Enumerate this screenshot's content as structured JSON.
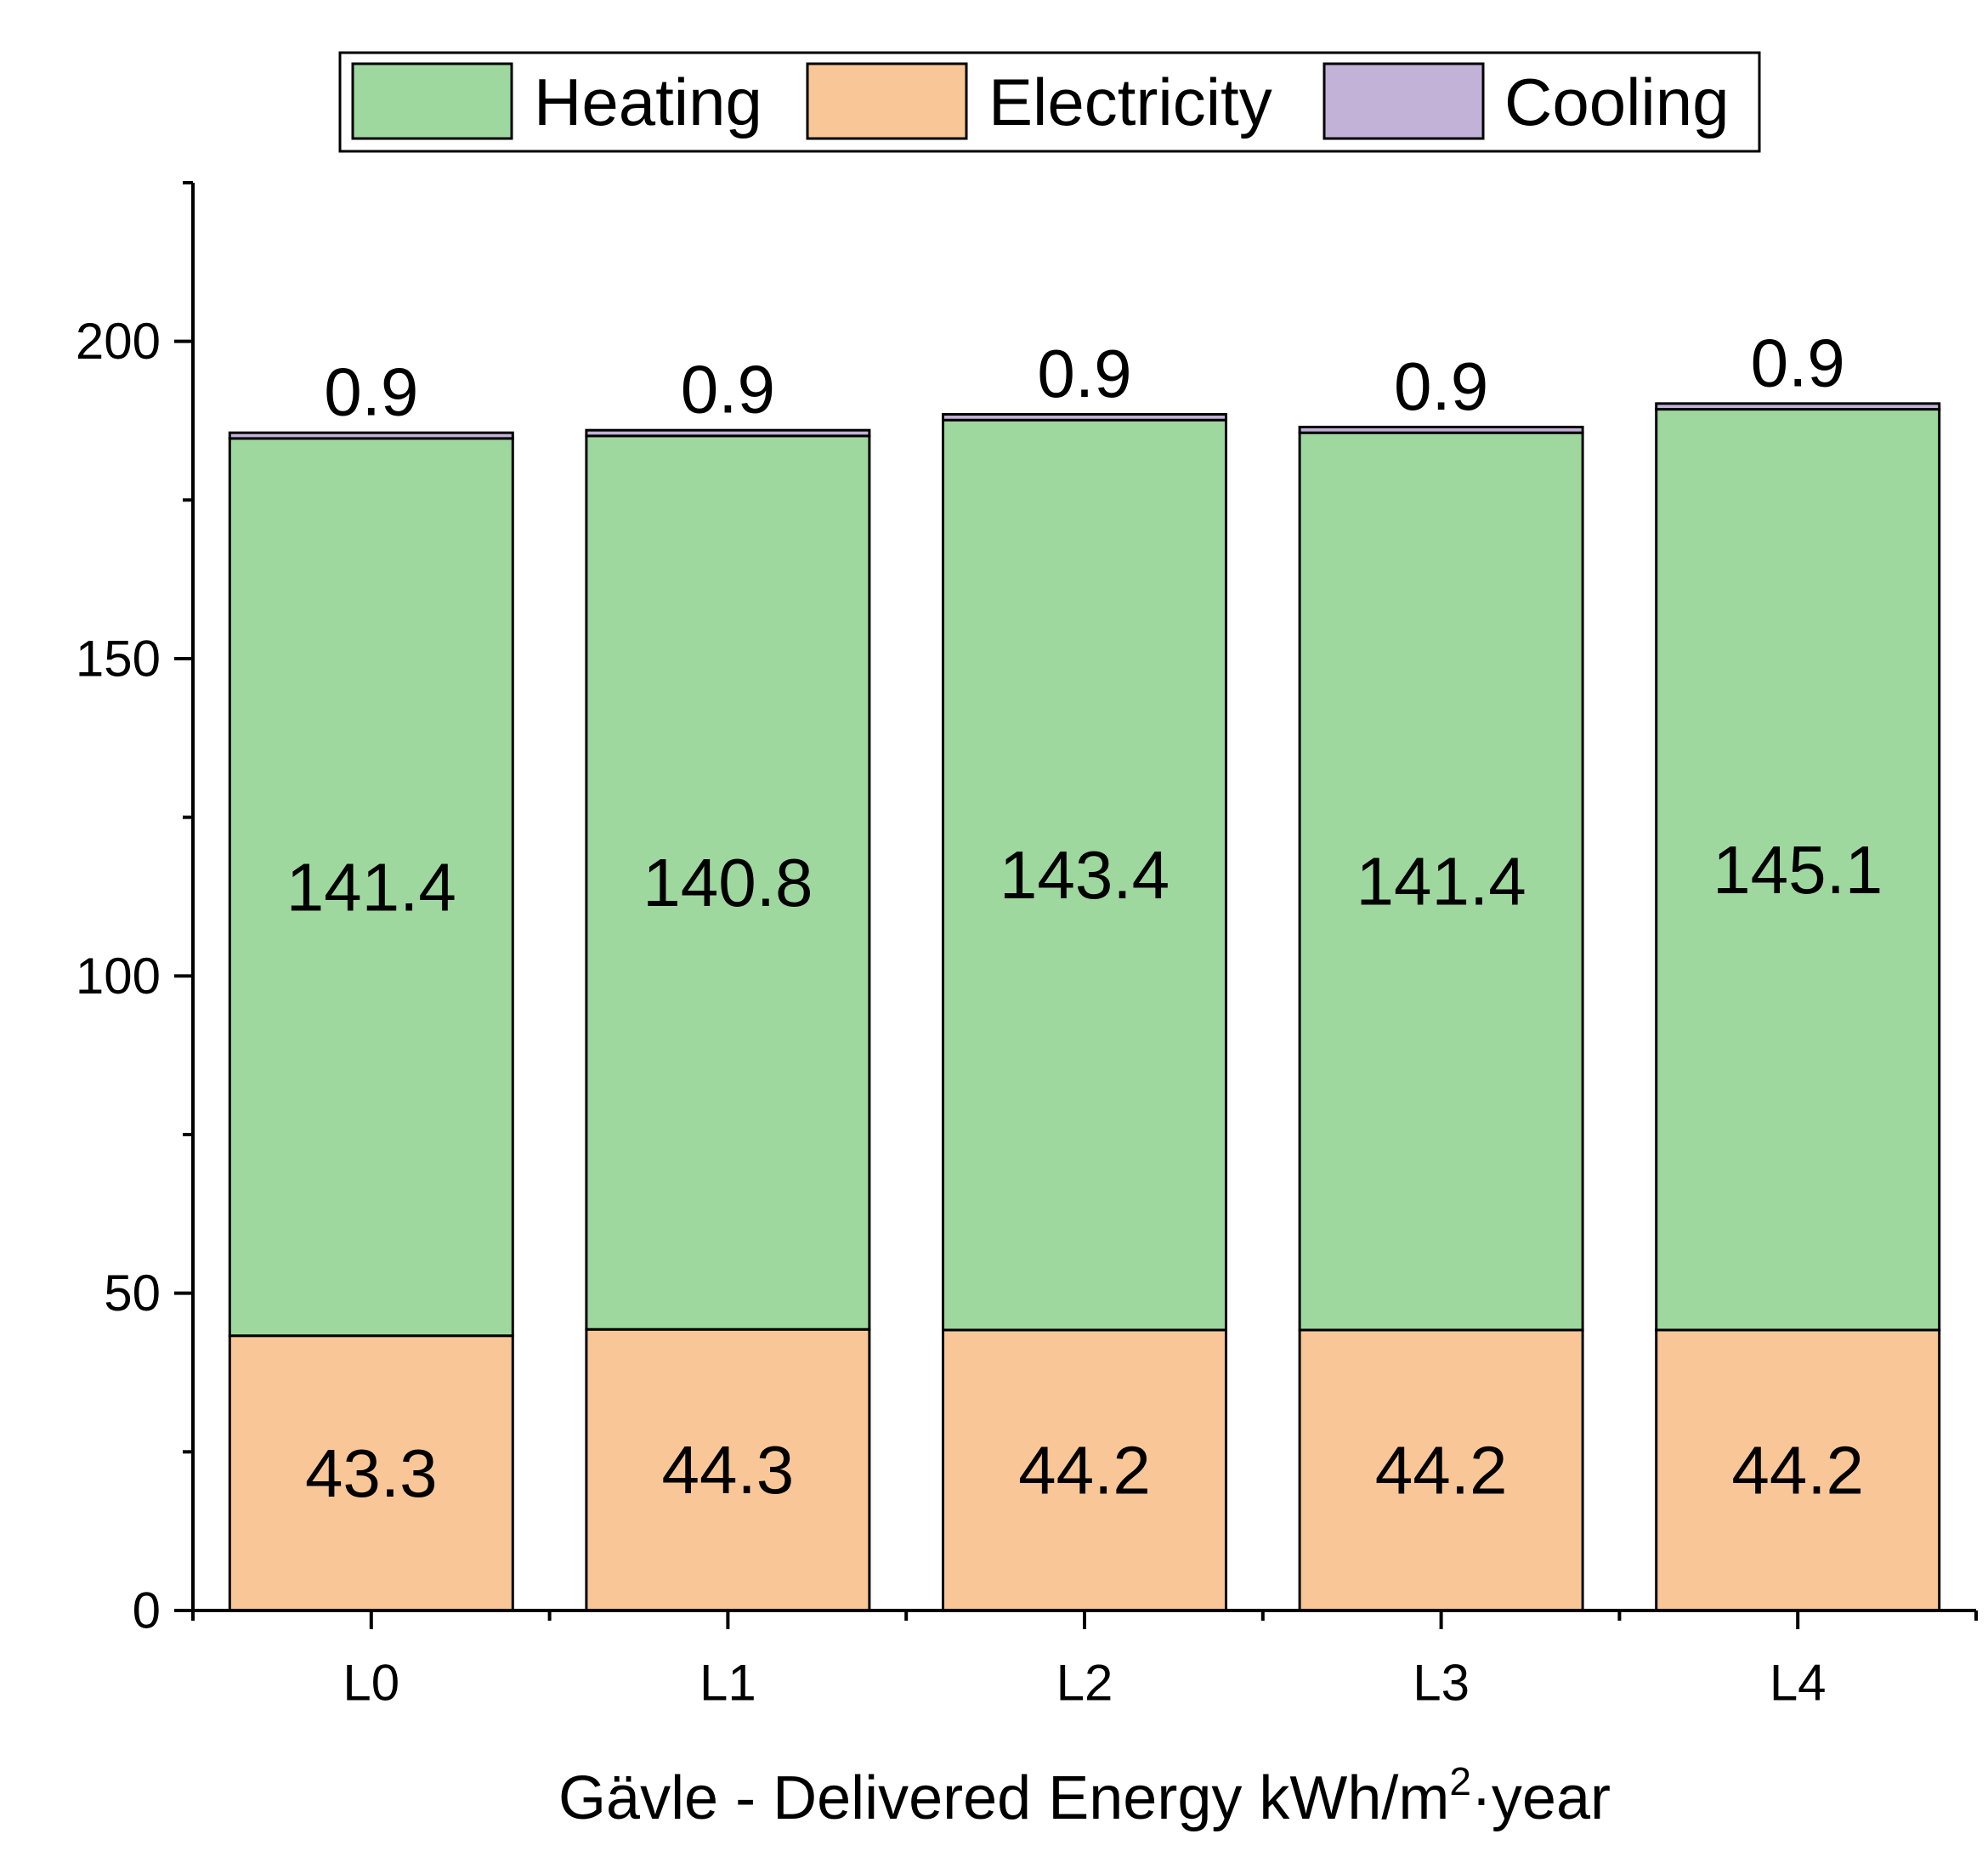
{
  "chart_data": {
    "type": "bar",
    "stacked": true,
    "categories": [
      "L0",
      "L1",
      "L2",
      "L3",
      "L4"
    ],
    "series": [
      {
        "name": "Electricity",
        "values": [
          43.3,
          44.3,
          44.2,
          44.2,
          44.2
        ],
        "color": "#f9c797"
      },
      {
        "name": "Heating",
        "values": [
          141.4,
          140.8,
          143.4,
          141.4,
          145.1
        ],
        "color": "#9fd89f"
      },
      {
        "name": "Cooling",
        "values": [
          0.9,
          0.9,
          0.9,
          0.9,
          0.9
        ],
        "color": "#c2b2d8"
      }
    ],
    "labels": {
      "Electricity": [
        "43.3",
        "44.3",
        "44.2",
        "44.2",
        "44.2"
      ],
      "Heating": [
        "141.4",
        "140.8",
        "143.4",
        "141.4",
        "145.1"
      ],
      "Cooling": [
        "0.9",
        "0.9",
        "0.9",
        "0.9",
        "0.9"
      ]
    },
    "legend": {
      "entries": [
        "Heating",
        "Electricity",
        "Cooling"
      ],
      "placement": "top"
    },
    "xlabel_main": "Gävle - Delivered Energy kWh/m",
    "xlabel_sup": "2",
    "xlabel_tail": "·year",
    "ylabel": "",
    "ylim": [
      0,
      225
    ],
    "yticks": [
      0,
      50,
      100,
      150,
      200
    ],
    "ytick_labels": [
      "0",
      "50",
      "100",
      "150",
      "200"
    ],
    "grid": false
  }
}
